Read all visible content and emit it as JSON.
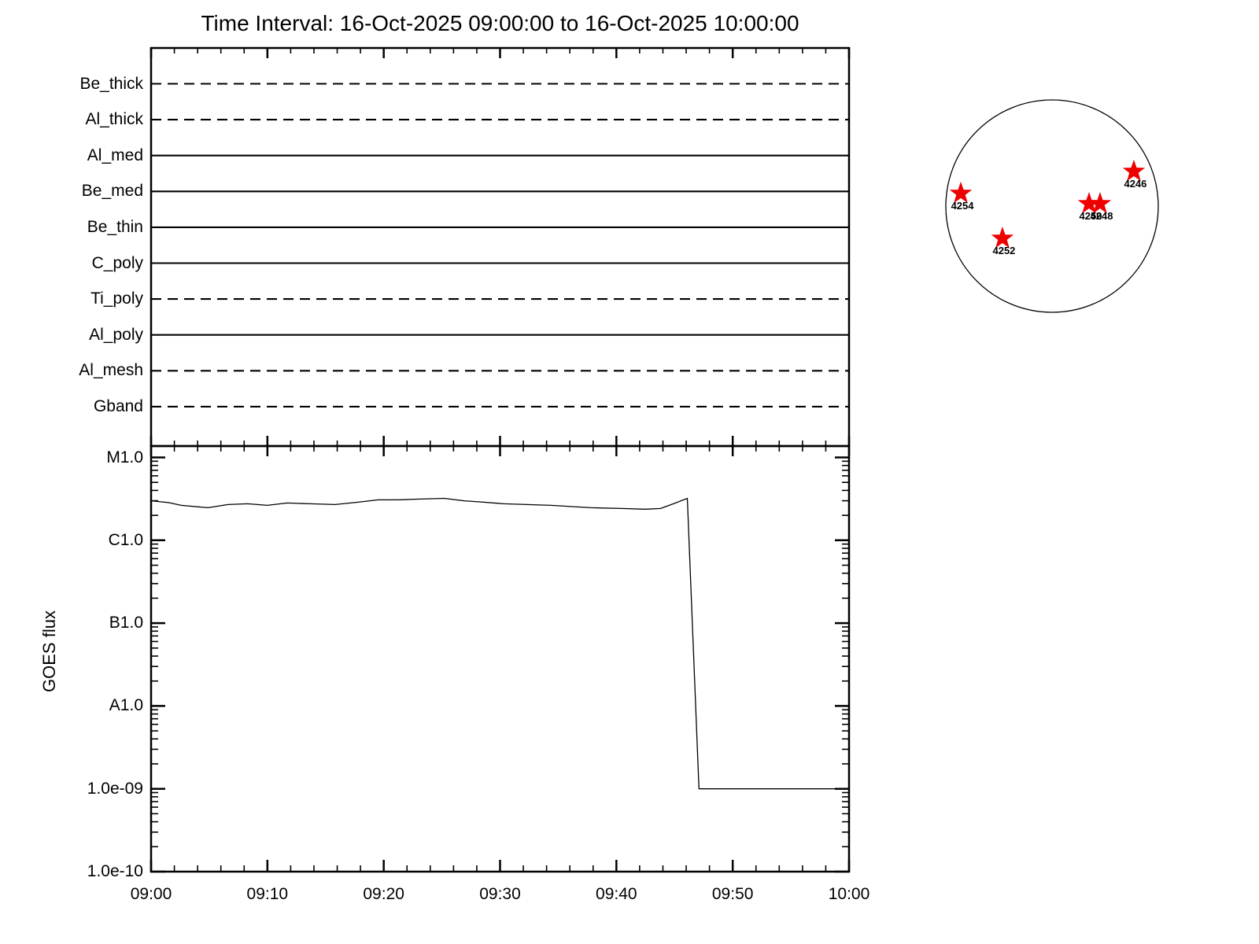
{
  "title": "Time Interval: 16-Oct-2025 09:00:00 to 16-Oct-2025 10:00:00",
  "colors": {
    "line": "#000000",
    "star": "#ee0000",
    "background": "#ffffff"
  },
  "chart_data": [
    {
      "id": "filter-timeline",
      "type": "line",
      "description": "Instrument filter timeline; each filter drawn as a horizontal reference line (solid or dashed) spanning the whole time interval",
      "y_categories": [
        "Be_thick",
        "Al_thick",
        "Al_med",
        "Be_med",
        "Be_thin",
        "C_poly",
        "Ti_poly",
        "Al_poly",
        "Al_mesh",
        "Gband"
      ],
      "line_styles": [
        "dashed",
        "dashed",
        "solid",
        "solid",
        "solid",
        "solid",
        "dashed",
        "solid",
        "dashed",
        "dashed"
      ],
      "x_axis": {
        "start": "09:00",
        "end": "10:00",
        "major_tick_minutes": 10,
        "minor_tick_minutes": 2
      },
      "grid": false,
      "legend": false
    },
    {
      "id": "goes-flux",
      "type": "line",
      "ylabel": "GOES flux",
      "xlabel": "",
      "yscale": "log",
      "ylim": [
        1e-10,
        1.4e-05
      ],
      "yticks": [
        {
          "label": "M1.0",
          "flux": 1e-05
        },
        {
          "label": "C1.0",
          "flux": 1e-06
        },
        {
          "label": "B1.0",
          "flux": 1e-07
        },
        {
          "label": "A1.0",
          "flux": 1e-08
        },
        {
          "label": "1.0e-09",
          "flux": 1e-09
        },
        {
          "label": "1.0e-10",
          "flux": 1e-10
        }
      ],
      "xticks": [
        "09:00",
        "09:10",
        "09:20",
        "09:30",
        "09:40",
        "09:50",
        "10:00"
      ],
      "x_axis": {
        "start_minute": 0,
        "end_minute": 60,
        "major_tick_minutes": 10,
        "minor_tick_minutes": 2
      },
      "series": [
        {
          "name": "GOES flux",
          "points_minute_flux": [
            [
              0.0,
              3e-06
            ],
            [
              1.5,
              2.85e-06
            ],
            [
              2.6,
              2.64e-06
            ],
            [
              4.9,
              2.47e-06
            ],
            [
              6.6,
              2.7e-06
            ],
            [
              8.3,
              2.76e-06
            ],
            [
              10.0,
              2.64e-06
            ],
            [
              11.7,
              2.82e-06
            ],
            [
              13.7,
              2.76e-06
            ],
            [
              15.8,
              2.7e-06
            ],
            [
              17.8,
              2.88e-06
            ],
            [
              19.5,
              3.08e-06
            ],
            [
              21.2,
              3.08e-06
            ],
            [
              22.9,
              3.14e-06
            ],
            [
              25.2,
              3.21e-06
            ],
            [
              26.9,
              3e-06
            ],
            [
              28.6,
              2.88e-06
            ],
            [
              30.3,
              2.76e-06
            ],
            [
              34.4,
              2.64e-06
            ],
            [
              37.8,
              2.47e-06
            ],
            [
              40.5,
              2.42e-06
            ],
            [
              42.5,
              2.37e-06
            ],
            [
              43.8,
              2.42e-06
            ],
            [
              44.9,
              2.76e-06
            ],
            [
              46.1,
              3.21e-06
            ],
            [
              47.1,
              1e-09
            ],
            [
              60.0,
              1e-09
            ]
          ]
        }
      ],
      "grid": false,
      "legend": false
    },
    {
      "id": "solar-disk",
      "type": "scatter",
      "description": "Solar disk outline with flagged active regions; coordinates are fractions of the disk radius (x positive = west/right, y positive = down)",
      "marker": "star",
      "disk_outline": true,
      "points": [
        {
          "label": "4254",
          "x": -0.859,
          "y": -0.119
        },
        {
          "label": "4252",
          "x": -0.467,
          "y": 0.304
        },
        {
          "label": "4250",
          "x": 0.348,
          "y": -0.022
        },
        {
          "label": "4248",
          "x": 0.452,
          "y": -0.022
        },
        {
          "label": "4246",
          "x": 0.77,
          "y": -0.326
        }
      ]
    }
  ]
}
